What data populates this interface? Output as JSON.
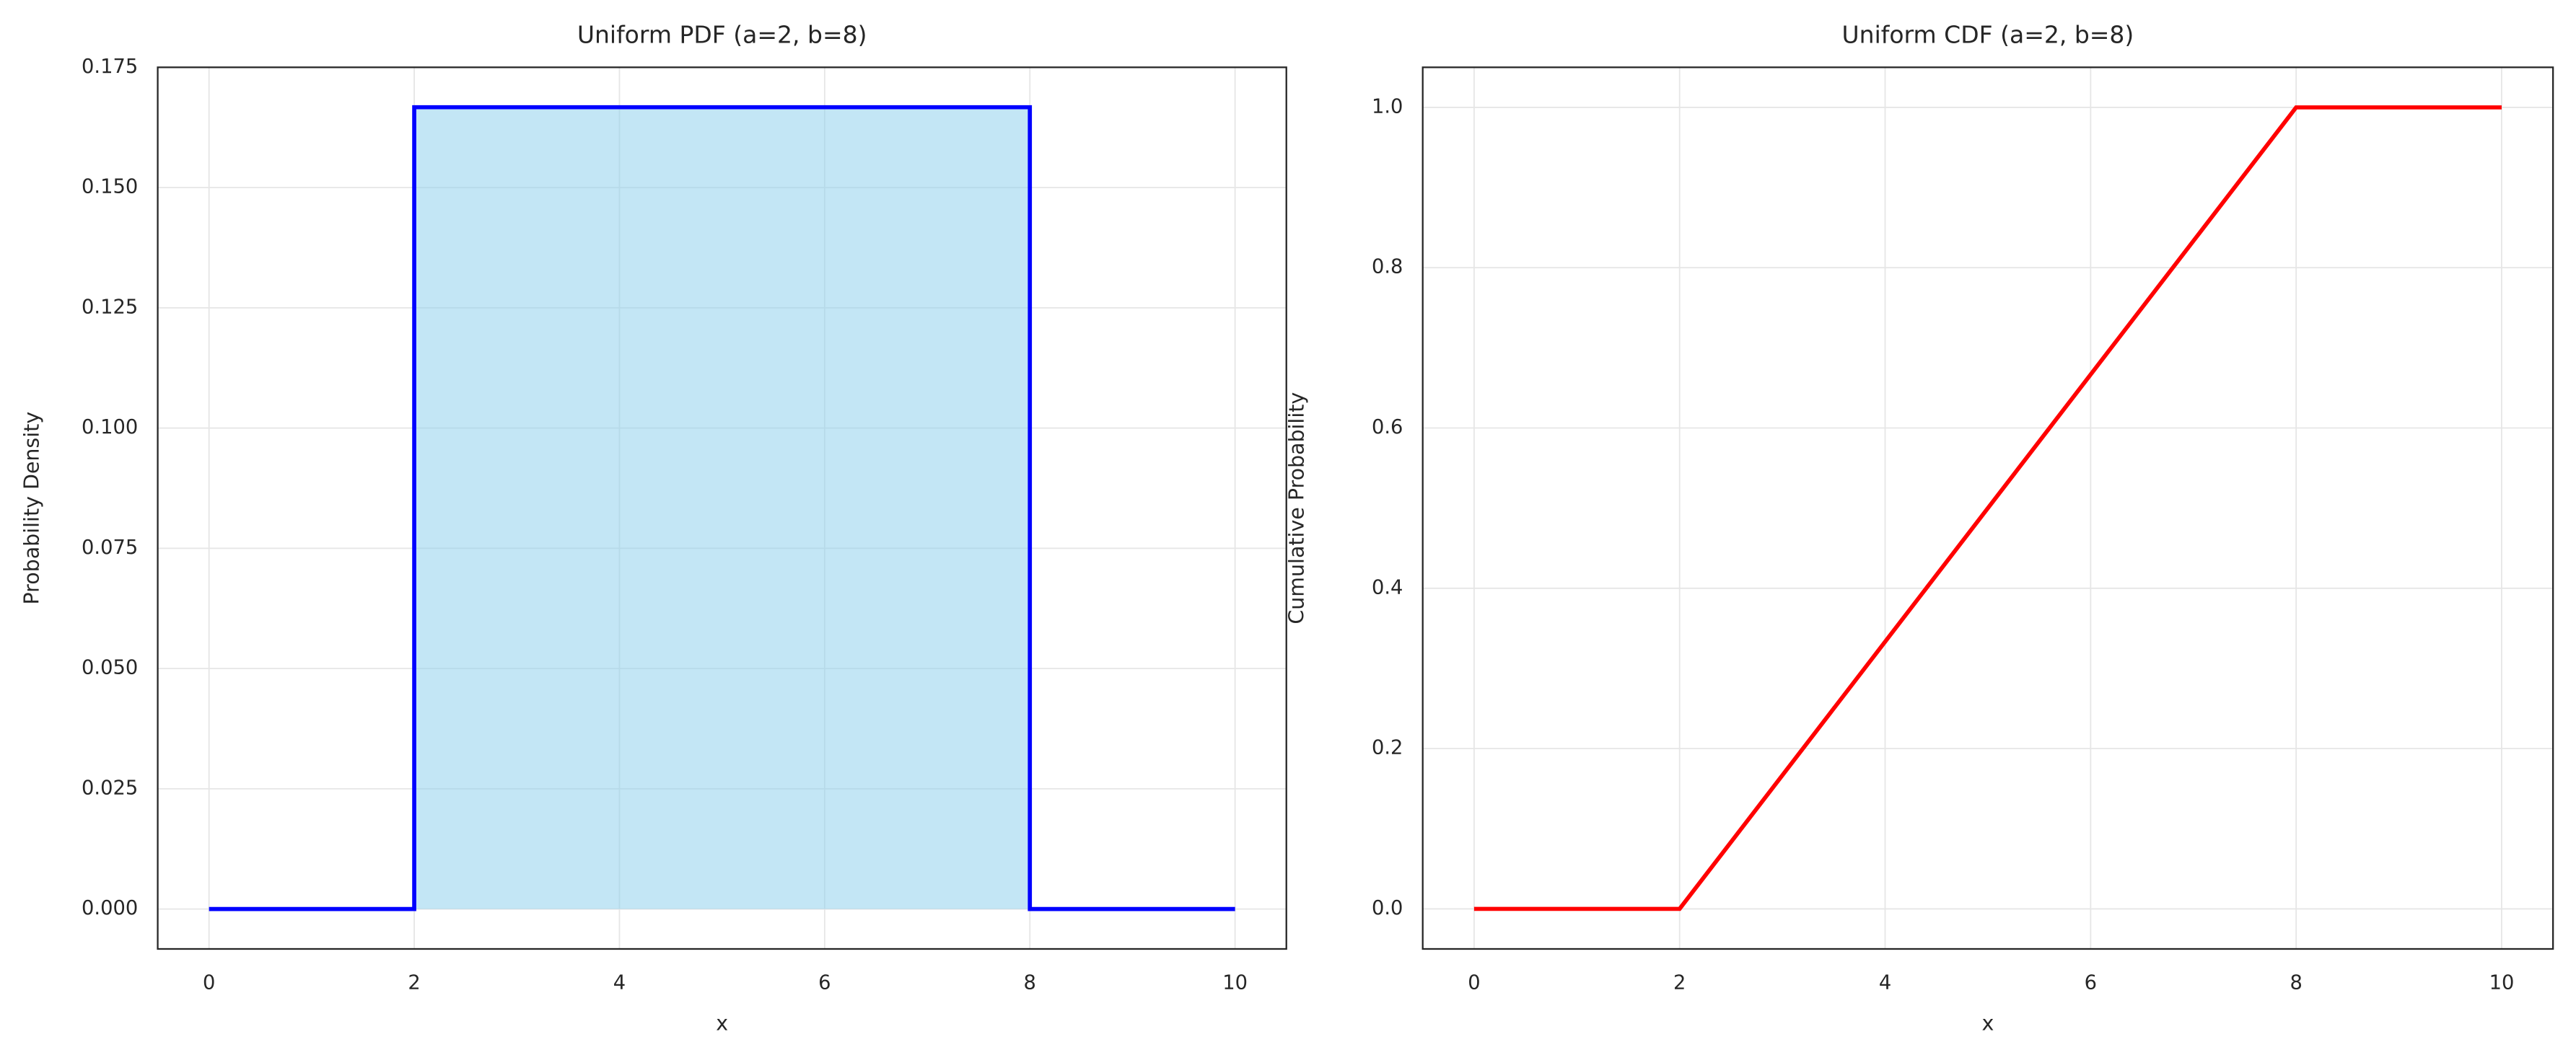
{
  "chart_data": [
    {
      "type": "line",
      "title": "Uniform PDF (a=2, b=8)",
      "xlabel": "x",
      "ylabel": "Probability Density",
      "x": [
        0,
        2,
        2,
        8,
        8,
        10
      ],
      "values": [
        0,
        0,
        0.1667,
        0.1667,
        0,
        0
      ],
      "color": "#0000ff",
      "fill": true,
      "fill_color": "#87ceeb",
      "fill_opacity": 0.5,
      "xlim": [
        -0.5,
        10.5
      ],
      "ylim": [
        -0.0083,
        0.175
      ],
      "xticks": [
        0,
        2,
        4,
        6,
        8,
        10
      ],
      "yticks": [
        {
          "value": 0,
          "label": "0.000"
        },
        {
          "value": 0.025,
          "label": "0.025"
        },
        {
          "value": 0.05,
          "label": "0.050"
        },
        {
          "value": 0.075,
          "label": "0.075"
        },
        {
          "value": 0.1,
          "label": "0.100"
        },
        {
          "value": 0.125,
          "label": "0.125"
        },
        {
          "value": 0.15,
          "label": "0.150"
        },
        {
          "value": 0.175,
          "label": "0.175"
        }
      ],
      "grid": true
    },
    {
      "type": "line",
      "title": "Uniform CDF (a=2, b=8)",
      "xlabel": "x",
      "ylabel": "Cumulative Probability",
      "x": [
        0,
        2,
        8,
        10
      ],
      "values": [
        0,
        0,
        1,
        1
      ],
      "color": "#ff0000",
      "fill": false,
      "xlim": [
        -0.5,
        10.5
      ],
      "ylim": [
        -0.05,
        1.05
      ],
      "xticks": [
        0,
        2,
        4,
        6,
        8,
        10
      ],
      "yticks": [
        {
          "value": 0,
          "label": "0.0"
        },
        0.2,
        0.4,
        0.6,
        0.8,
        {
          "value": 1,
          "label": "1.0"
        }
      ],
      "grid": true
    }
  ]
}
